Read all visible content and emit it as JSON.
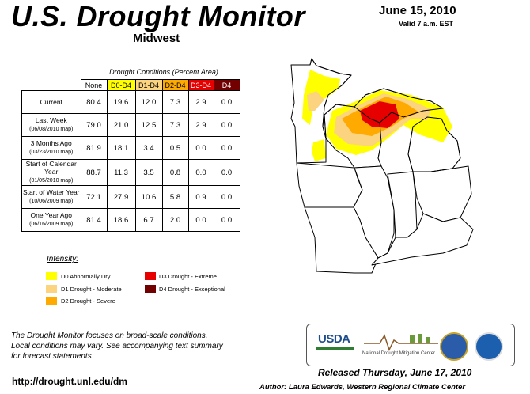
{
  "header": {
    "title": "U.S. Drought Monitor",
    "region": "Midwest",
    "date": "June 15, 2010",
    "valid": "Valid 7 a.m. EST"
  },
  "table": {
    "caption": "Drought Conditions (Percent Area)",
    "columns": [
      "None",
      "D0-D4",
      "D1-D4",
      "D2-D4",
      "D3-D4",
      "D4"
    ],
    "rows": [
      {
        "label": "Current",
        "sub": "",
        "values": [
          "80.4",
          "19.6",
          "12.0",
          "7.3",
          "2.9",
          "0.0"
        ]
      },
      {
        "label": "Last Week",
        "sub": "(06/08/2010 map)",
        "values": [
          "79.0",
          "21.0",
          "12.5",
          "7.3",
          "2.9",
          "0.0"
        ]
      },
      {
        "label": "3 Months Ago",
        "sub": "(03/23/2010 map)",
        "values": [
          "81.9",
          "18.1",
          "3.4",
          "0.5",
          "0.0",
          "0.0"
        ]
      },
      {
        "label": "Start of Calendar Year",
        "sub": "(01/05/2010 map)",
        "values": [
          "88.7",
          "11.3",
          "3.5",
          "0.8",
          "0.0",
          "0.0"
        ]
      },
      {
        "label": "Start of Water Year",
        "sub": "(10/06/2009 map)",
        "values": [
          "72.1",
          "27.9",
          "10.6",
          "5.8",
          "0.9",
          "0.0"
        ]
      },
      {
        "label": "One Year Ago",
        "sub": "(06/16/2009 map)",
        "values": [
          "81.4",
          "18.6",
          "6.7",
          "2.0",
          "0.0",
          "0.0"
        ]
      }
    ]
  },
  "legend": {
    "title": "Intensity:",
    "items": [
      {
        "label": "D0 Abnormally Dry",
        "color": "#ffff00"
      },
      {
        "label": "D1 Drought - Moderate",
        "color": "#fcd37f"
      },
      {
        "label": "D2 Drought - Severe",
        "color": "#ffaa00"
      },
      {
        "label": "D3 Drought - Extreme",
        "color": "#e60000"
      },
      {
        "label": "D4 Drought - Exceptional",
        "color": "#730000"
      }
    ]
  },
  "footer": {
    "note_line1": "The Drought Monitor focuses on broad-scale conditions.",
    "note_line2": "Local conditions may vary. See accompanying text summary",
    "note_line3": "for forecast statements",
    "url": "http://drought.unl.edu/dm",
    "released": "Released Thursday, June 17, 2010",
    "author": "Author: Laura Edwards, Western Regional Climate Center"
  },
  "logos": {
    "usda": "USDA",
    "ndmc": "National Drought Mitigation Center"
  }
}
